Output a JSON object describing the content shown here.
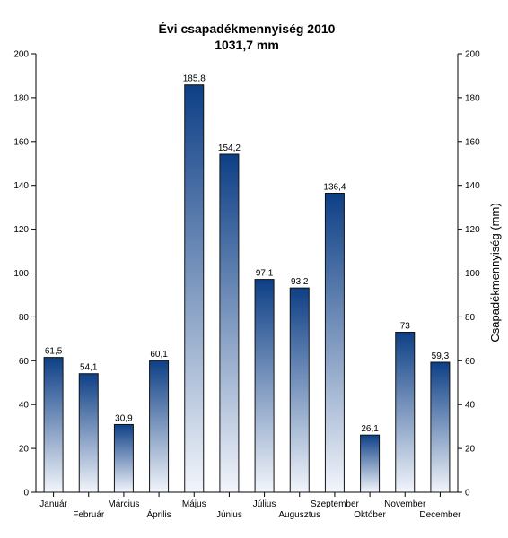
{
  "chart_data": {
    "type": "bar",
    "title": "Évi csapadékmennyiség 2010",
    "subtitle": "1031,7 mm",
    "xlabel": "",
    "ylabel": "Csapadékmennyiség (mm)",
    "ylim": [
      0,
      200
    ],
    "yticks": [
      0,
      20,
      40,
      60,
      80,
      100,
      120,
      140,
      160,
      180,
      200
    ],
    "grid": false,
    "legend": "none",
    "categories": [
      "Január",
      "Február",
      "Március",
      "Április",
      "Május",
      "Június",
      "Július",
      "Augusztus",
      "Szeptember",
      "Október",
      "November",
      "December"
    ],
    "values": [
      61.5,
      54.1,
      30.9,
      60.1,
      185.8,
      154.2,
      97.1,
      93.2,
      136.4,
      26.1,
      73,
      59.3
    ],
    "value_labels": [
      "61,5",
      "54,1",
      "30,9",
      "60,1",
      "185,8",
      "154,2",
      "97,1",
      "93,2",
      "136,4",
      "26,1",
      "73",
      "59,3"
    ],
    "colors": {
      "bar_top": "#0d3f86",
      "bar_bottom": "#f2f5fb",
      "axis": "#000000"
    }
  }
}
